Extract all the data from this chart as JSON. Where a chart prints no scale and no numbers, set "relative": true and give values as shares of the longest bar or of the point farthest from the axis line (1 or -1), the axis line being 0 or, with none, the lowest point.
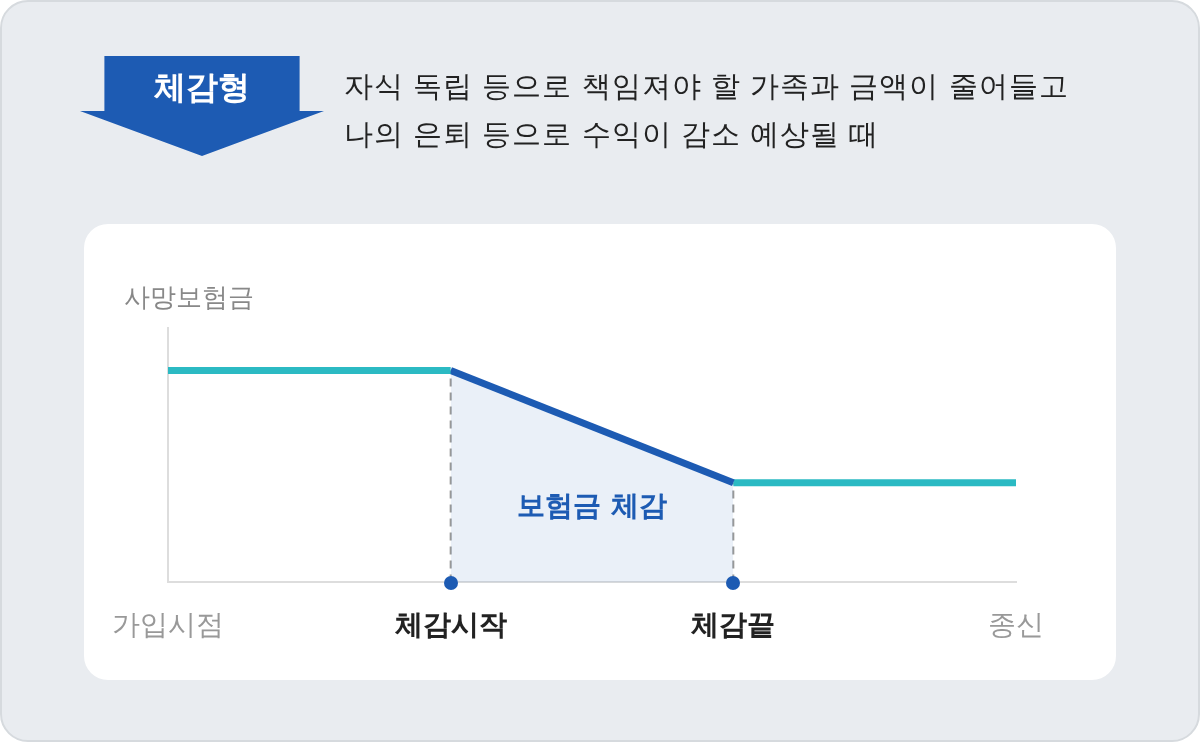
{
  "chart_data": {
    "type": "line",
    "title": "체감형",
    "subtitle": "자식 독립 등으로 책임져야 할 가족과 금액이 줄어들고\n나의 은퇴 등으로 수익이 감소 예상될 때",
    "ylabel": "사망보험금",
    "relative": true,
    "categories": [
      "가입시점",
      "체감시작",
      "체감끝",
      "종신"
    ],
    "series": [
      {
        "color": "#2bbac3",
        "values": [
          1,
          1,
          null,
          null
        ]
      },
      {
        "type": "area",
        "color": "#1d5bb3",
        "values": [
          null,
          1,
          0.47,
          null
        ]
      },
      {
        "color": "#2bbac3",
        "values": [
          null,
          null,
          0.47,
          0.47
        ]
      }
    ],
    "ref_lines": [
      {
        "axis": "x",
        "value": "체감시작",
        "color": "#999999",
        "line_style": "dashed"
      },
      {
        "axis": "x",
        "value": "체감끝",
        "color": "#999999",
        "line_style": "dashed"
      }
    ],
    "annotations": [
      "보험금 체감"
    ],
    "legend": false,
    "grid": false,
    "tick_labels": "x",
    "marker": "none",
    "line_style": "solid"
  }
}
